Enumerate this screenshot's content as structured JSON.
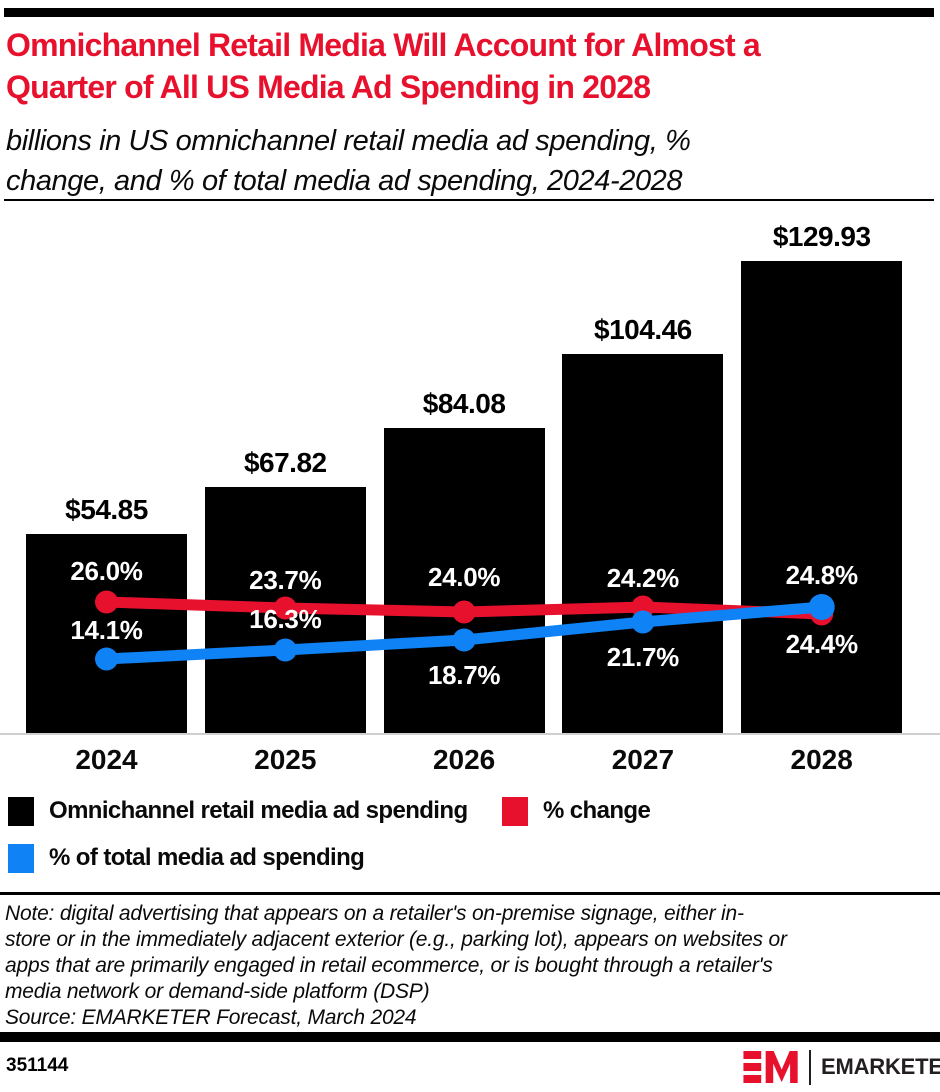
{
  "header": {
    "title_lines": [
      "Omnichannel Retail Media Will Account for Almost a",
      "Quarter of All US Media Ad Spending in 2028"
    ],
    "subtitle_lines": [
      "billions in US omnichannel retail media ad spending, %",
      "change, and % of total media ad spending, 2024-2028"
    ]
  },
  "chart_data": {
    "type": "bar",
    "subtype": "bar with two overlaid line series",
    "title": "Omnichannel Retail Media Will Account for Almost a Quarter of All US Media Ad Spending in 2028",
    "subtitle": "billions in US omnichannel retail media ad spending, % change, and % of total media ad spending, 2024-2028",
    "categories": [
      "2024",
      "2025",
      "2026",
      "2027",
      "2028"
    ],
    "series": [
      {
        "name": "Omnichannel retail media ad spending",
        "type": "bar",
        "unit": "billions of US dollars",
        "value_prefix": "$",
        "values": [
          54.85,
          67.82,
          84.08,
          104.46,
          129.93
        ],
        "color": "#000000"
      },
      {
        "name": "% change",
        "type": "line",
        "unit": "%",
        "values": [
          26.0,
          23.7,
          24.0,
          24.2,
          24.8
        ],
        "color": "#e8112d"
      },
      {
        "name": "% of total media ad spending",
        "type": "line",
        "unit": "%",
        "values": [
          14.1,
          16.3,
          18.7,
          21.7,
          24.4
        ],
        "color": "#0f82f5"
      }
    ],
    "ylim": [
      0,
      135
    ],
    "gridlines": false,
    "legend_position": "bottom-left"
  },
  "note": {
    "lines": [
      "Note: digital advertising that appears on a retailer's on-premise signage, either in-",
      "store or in the immediately adjacent exterior (e.g., parking lot), appears on websites or",
      "apps that are primarily engaged in retail ecommerce, or is bought through a retailer's",
      "media network or demand-side platform (DSP)"
    ],
    "source": "Source: EMARKETER Forecast, March 2024"
  },
  "footer": {
    "chart_id": "351144",
    "brand": "EMARKETER"
  }
}
